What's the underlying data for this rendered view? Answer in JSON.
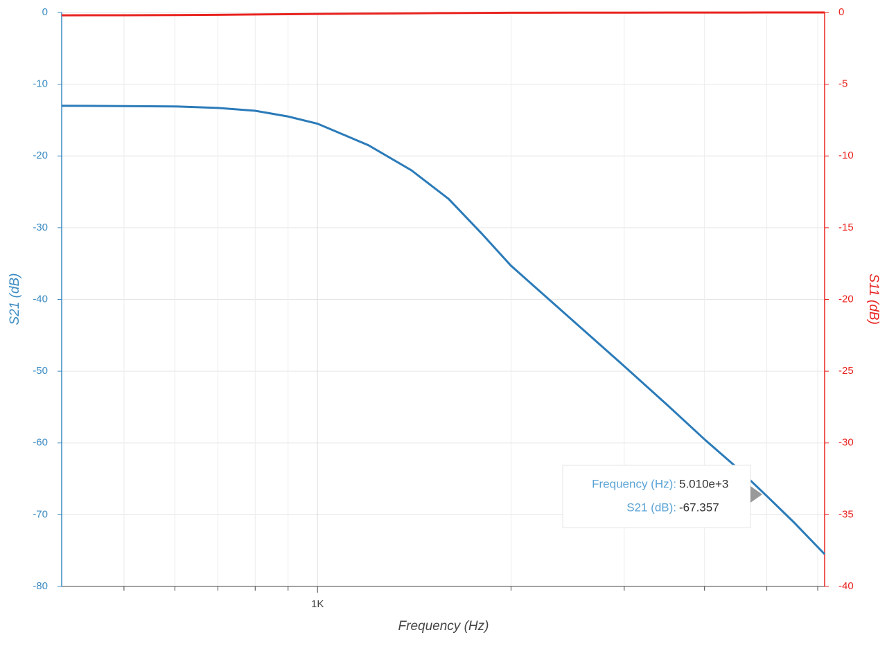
{
  "chart_data": {
    "type": "line",
    "xlabel": "Frequency (Hz)",
    "ylabel": "S21 (dB)",
    "y2label": "S11 (dB)",
    "xscale": "log",
    "grid": true,
    "xlim": [
      400,
      6150
    ],
    "xticks": [
      {
        "value": 1000,
        "label": "1K"
      }
    ],
    "x_minor_ticks": [
      500,
      600,
      700,
      800,
      900,
      2000,
      3000,
      4000,
      5000,
      6000
    ],
    "ylim": [
      -80,
      0
    ],
    "yticks": [
      -80,
      -70,
      -60,
      -50,
      -40,
      -30,
      -20,
      -10,
      0
    ],
    "y2lim": [
      -40,
      0
    ],
    "y2ticks": [
      -40,
      -35,
      -30,
      -25,
      -20,
      -15,
      -10,
      -5,
      0
    ],
    "x": [
      400,
      500,
      600,
      700,
      800,
      900,
      1000,
      1200,
      1400,
      1600,
      1800,
      2000,
      2500,
      3000,
      3500,
      4000,
      4500,
      5000,
      5500,
      6150
    ],
    "series": [
      {
        "name": "S21 (dB)",
        "color": "#2b7bb9",
        "axis": "y",
        "values": [
          -13.0,
          -13.05,
          -13.1,
          -13.3,
          -13.7,
          -14.5,
          -15.5,
          -18.5,
          -22,
          -26,
          -30.8,
          -35.3,
          -43,
          -49.3,
          -54.7,
          -59.5,
          -63.5,
          -67.4,
          -71,
          -75.5
        ]
      },
      {
        "name": "S11 (dB)",
        "color": "#e8231f",
        "axis": "y2",
        "values": [
          -0.2,
          -0.19,
          -0.18,
          -0.16,
          -0.14,
          -0.12,
          -0.1,
          -0.08,
          -0.06,
          -0.04,
          -0.03,
          -0.02,
          -0.015,
          -0.01,
          -0.008,
          -0.006,
          -0.004,
          -0.003,
          -0.002,
          -0.001
        ]
      }
    ],
    "tooltip": {
      "x_label": "Frequency (Hz):",
      "x_value": "5.010e+3",
      "y_label": "S21 (dB):",
      "y_value": "-67.357"
    }
  }
}
